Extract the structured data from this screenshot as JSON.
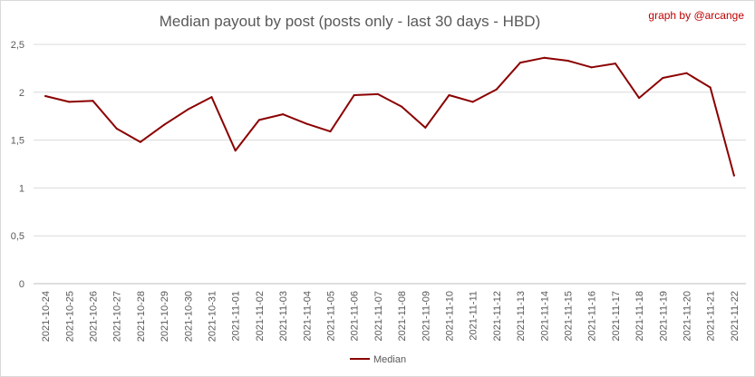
{
  "chart_data": {
    "type": "line",
    "title": "Median payout by post (posts only - last 30 days - HBD)",
    "credit": "graph by @arcange",
    "xlabel": "",
    "ylabel": "",
    "ylim": [
      0,
      2.5
    ],
    "y_ticks": [
      "0",
      "0,5",
      "1",
      "1,5",
      "2",
      "2,5"
    ],
    "y_tick_values": [
      0,
      0.5,
      1,
      1.5,
      2,
      2.5
    ],
    "grid": true,
    "legend_position": "bottom",
    "colors": {
      "series": "#8b0000",
      "credit": "#c00000",
      "title": "#595959"
    },
    "x": [
      "2021-10-24",
      "2021-10-25",
      "2021-10-26",
      "2021-10-27",
      "2021-10-28",
      "2021-10-29",
      "2021-10-30",
      "2021-10-31",
      "2021-11-01",
      "2021-11-02",
      "2021-11-03",
      "2021-11-04",
      "2021-11-05",
      "2021-11-06",
      "2021-11-07",
      "2021-11-08",
      "2021-11-09",
      "2021-11-10",
      "2021-11-11",
      "2021-11-12",
      "2021-11-13",
      "2021-11-14",
      "2021-11-15",
      "2021-11-16",
      "2021-11-17",
      "2021-11-18",
      "2021-11-19",
      "2021-11-20",
      "2021-11-21",
      "2021-11-22"
    ],
    "series": [
      {
        "name": "Median",
        "values": [
          1.96,
          1.9,
          1.91,
          1.62,
          1.48,
          1.66,
          1.82,
          1.95,
          1.39,
          1.71,
          1.77,
          1.67,
          1.59,
          1.97,
          1.98,
          1.85,
          1.63,
          1.97,
          1.9,
          2.03,
          2.31,
          2.36,
          2.33,
          2.26,
          2.3,
          1.94,
          2.15,
          2.2,
          2.05,
          1.13
        ]
      }
    ]
  }
}
